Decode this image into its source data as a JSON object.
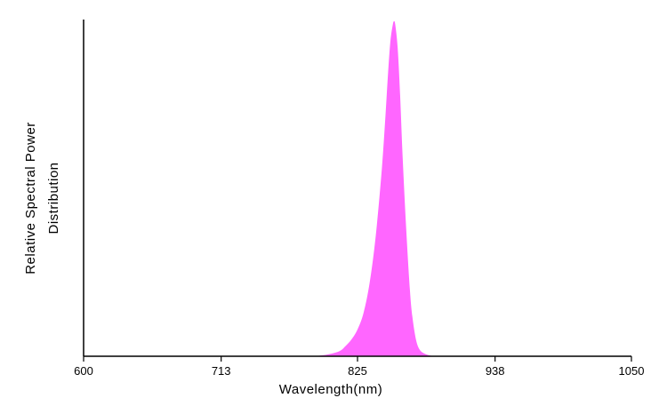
{
  "chart_data": {
    "type": "area",
    "title": "",
    "xlabel": "Wavelength(nm)",
    "ylabel_lines": [
      "Relative Spectral Power",
      "Distribution"
    ],
    "xlim": [
      600,
      1050
    ],
    "ylim": [
      0,
      1
    ],
    "x_ticks": [
      600,
      713,
      825,
      938,
      1050
    ],
    "x_tick_labels": [
      "600",
      "713",
      "825",
      "938",
      "1050"
    ],
    "grid": false,
    "legend": "none",
    "fill_color": "#ff66ff",
    "series": [
      {
        "x": [
          790,
          800,
          810,
          815,
          820,
          825,
          830,
          835,
          840,
          845,
          848,
          850,
          852,
          854,
          855,
          856,
          858,
          860,
          862,
          865,
          868,
          870,
          873,
          876,
          880,
          885,
          890,
          895
        ],
        "y": [
          0.0,
          0.005,
          0.015,
          0.03,
          0.05,
          0.08,
          0.13,
          0.22,
          0.36,
          0.56,
          0.72,
          0.84,
          0.94,
          0.99,
          1.0,
          0.99,
          0.92,
          0.78,
          0.6,
          0.38,
          0.2,
          0.12,
          0.05,
          0.02,
          0.008,
          0.002,
          0.0,
          0.0
        ]
      }
    ]
  }
}
